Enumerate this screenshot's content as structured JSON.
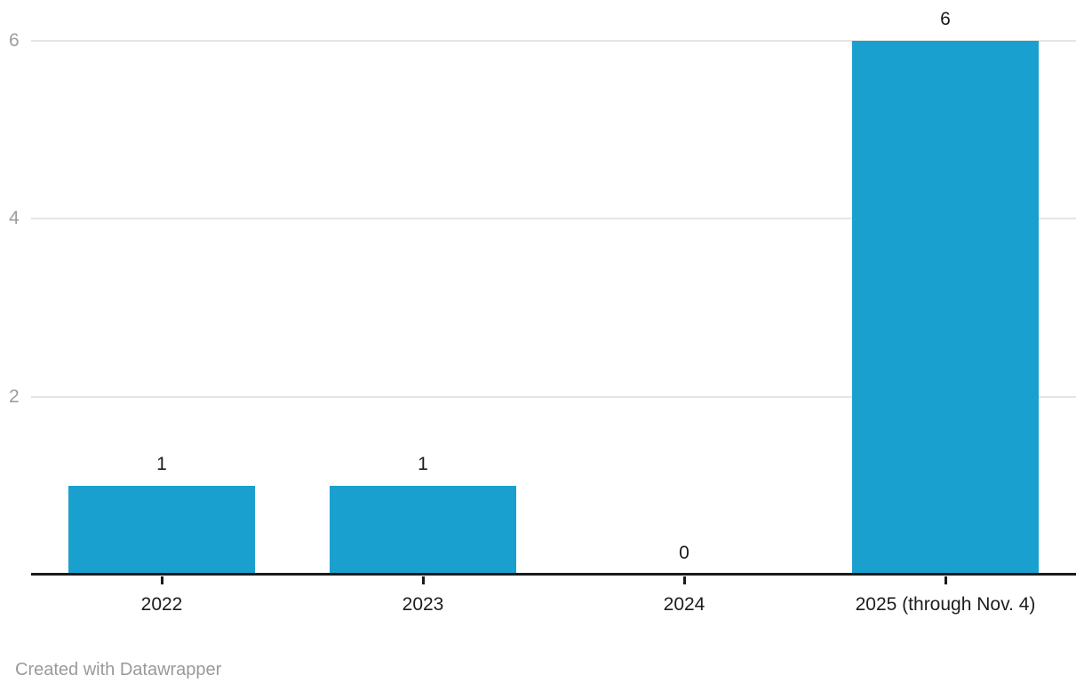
{
  "chart_data": {
    "type": "bar",
    "categories": [
      "2022",
      "2023",
      "2024",
      "2025 (through Nov. 4)"
    ],
    "values": [
      1,
      1,
      0,
      6
    ],
    "value_labels": [
      "1",
      "1",
      "0",
      "6"
    ],
    "title": "",
    "xlabel": "",
    "ylabel": "",
    "ylim": [
      0,
      6
    ],
    "yticks": [
      2,
      4,
      6
    ],
    "ytick_labels": [
      "2",
      "4",
      "6"
    ],
    "grid": true,
    "legend": "none",
    "colors": {
      "bar": "#19a0ce",
      "gridline": "#e5e5e5",
      "axis_line": "#1a1a1a",
      "ytick_label": "#9d9d9d",
      "xtick_label": "#1d1d1d",
      "value_label": "#1a1a1a"
    }
  },
  "footer": {
    "attribution": "Created with Datawrapper"
  }
}
